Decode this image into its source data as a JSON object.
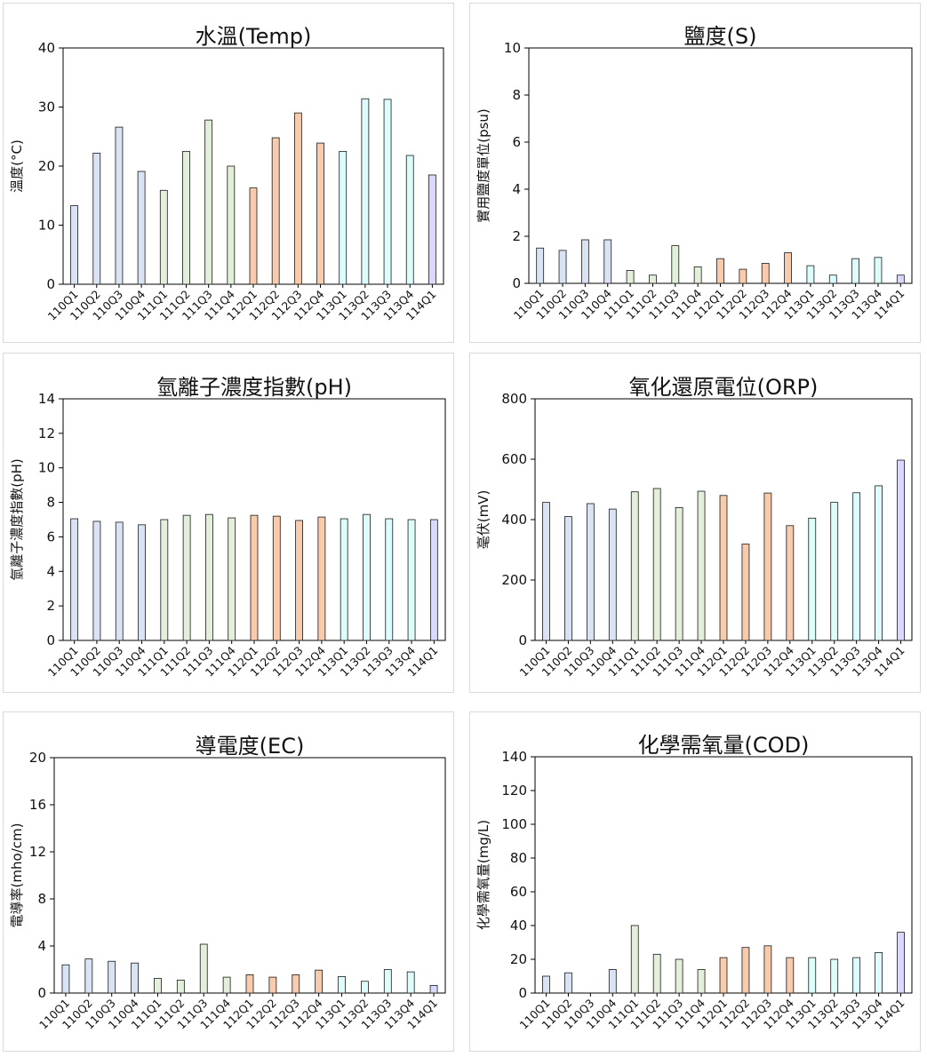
{
  "colors": {
    "110": "#dae3f3",
    "111": "#e2efda",
    "112": "#f8cbad",
    "113": "#ddfcfc",
    "114": "#d9d9ff"
  },
  "chart_data": [
    {
      "type": "bar",
      "title": "水溫(Temp)",
      "ylabel": "溫度(°C)",
      "categories": [
        "110Q1",
        "110Q2",
        "110Q3",
        "110Q4",
        "111Q1",
        "111Q2",
        "111Q3",
        "111Q4",
        "112Q1",
        "112Q2",
        "112Q3",
        "112Q4",
        "113Q1",
        "113Q2",
        "113Q3",
        "113Q4",
        "114Q1"
      ],
      "values": [
        13.3,
        22.2,
        26.6,
        19.1,
        15.9,
        22.5,
        27.8,
        20.0,
        16.3,
        24.8,
        29.0,
        23.9,
        22.5,
        31.4,
        31.3,
        21.8,
        18.5
      ],
      "ylim": [
        0,
        40
      ],
      "yticks": [
        0,
        10,
        20,
        30,
        40
      ],
      "ytick_labels": [
        "0",
        "10",
        "20",
        "30",
        "40"
      ]
    },
    {
      "type": "bar",
      "title": "鹽度(S)",
      "ylabel": "實用鹽度單位(psu)",
      "categories": [
        "110Q1",
        "110Q2",
        "110Q3",
        "110Q4",
        "111Q1",
        "111Q2",
        "111Q3",
        "111Q4",
        "112Q1",
        "112Q2",
        "112Q3",
        "112Q4",
        "113Q1",
        "113Q2",
        "113Q3",
        "113Q4",
        "114Q1"
      ],
      "values": [
        1.5,
        1.4,
        1.85,
        1.85,
        0.55,
        0.35,
        1.6,
        0.7,
        1.05,
        0.6,
        0.85,
        1.3,
        0.75,
        0.35,
        1.05,
        1.1,
        0.35
      ],
      "ylim": [
        0,
        10
      ],
      "yticks": [
        0,
        2,
        4,
        6,
        8,
        10
      ],
      "ytick_labels": [
        "0",
        "2",
        "4",
        "6",
        "8",
        "10"
      ]
    },
    {
      "type": "bar",
      "title": "氫離子濃度指數(pH)",
      "ylabel": "氫離子濃度指數(pH)",
      "categories": [
        "110Q1",
        "110Q2",
        "110Q3",
        "110Q4",
        "111Q1",
        "111Q2",
        "111Q3",
        "111Q4",
        "112Q1",
        "112Q2",
        "112Q3",
        "112Q4",
        "113Q1",
        "113Q2",
        "113Q3",
        "113Q4",
        "114Q1"
      ],
      "values": [
        7.05,
        6.9,
        6.85,
        6.7,
        7.0,
        7.25,
        7.3,
        7.1,
        7.25,
        7.2,
        6.95,
        7.15,
        7.05,
        7.3,
        7.05,
        7.0,
        7.0
      ],
      "ylim": [
        0,
        14
      ],
      "yticks": [
        0,
        2,
        4,
        6,
        8,
        10,
        12,
        14
      ],
      "ytick_labels": [
        "0",
        "2",
        "4",
        "6",
        "8",
        "10",
        "12",
        "14"
      ]
    },
    {
      "type": "bar",
      "title": "氧化還原電位(ORP)",
      "ylabel": "毫伏(mV)",
      "categories": [
        "110Q1",
        "110Q2",
        "110Q3",
        "110Q4",
        "111Q1",
        "111Q2",
        "111Q3",
        "111Q4",
        "112Q1",
        "112Q2",
        "112Q3",
        "112Q4",
        "113Q1",
        "113Q2",
        "113Q3",
        "113Q4",
        "114Q1"
      ],
      "values": [
        457,
        410,
        453,
        435,
        492,
        503,
        440,
        494,
        480,
        319,
        488,
        380,
        405,
        457,
        489,
        512,
        597
      ],
      "ylim": [
        0,
        800
      ],
      "yticks": [
        0,
        200,
        400,
        600,
        800
      ],
      "ytick_labels": [
        "0",
        "200",
        "400",
        "600",
        "800"
      ]
    },
    {
      "type": "bar",
      "title": "導電度(EC)",
      "ylabel": "電導率(mho/cm)",
      "categories": [
        "110Q1",
        "110Q2",
        "110Q3",
        "110Q4",
        "111Q1",
        "111Q2",
        "111Q3",
        "111Q4",
        "112Q1",
        "112Q2",
        "112Q3",
        "112Q4",
        "113Q1",
        "113Q2",
        "113Q3",
        "113Q4",
        "114Q1"
      ],
      "values": [
        2.4,
        2.9,
        2.7,
        2.55,
        1.25,
        1.1,
        4.15,
        1.35,
        1.55,
        1.35,
        1.55,
        1.95,
        1.4,
        1.0,
        2.0,
        1.8,
        0.65
      ],
      "ylim": [
        0,
        20
      ],
      "yticks": [
        0,
        4,
        8,
        12,
        16,
        20
      ],
      "ytick_labels": [
        "0",
        "4",
        "8",
        "12",
        "16",
        "20"
      ]
    },
    {
      "type": "bar",
      "title": "化學需氧量(COD)",
      "ylabel": "化學需氧量(mg/L)",
      "categories": [
        "110Q1",
        "110Q2",
        "110Q3",
        "110Q4",
        "111Q1",
        "111Q2",
        "111Q3",
        "111Q4",
        "112Q1",
        "112Q2",
        "112Q3",
        "112Q4",
        "113Q1",
        "113Q2",
        "113Q3",
        "113Q4",
        "114Q1"
      ],
      "values": [
        10,
        12,
        null,
        14,
        40,
        23,
        20,
        14,
        21,
        27,
        28,
        21,
        21,
        20,
        21,
        24,
        36
      ],
      "ylim": [
        0,
        140
      ],
      "yticks": [
        0,
        20,
        40,
        60,
        80,
        100,
        120,
        140
      ],
      "ytick_labels": [
        "0",
        "20",
        "40",
        "60",
        "80",
        "100",
        "120",
        "140"
      ]
    }
  ]
}
